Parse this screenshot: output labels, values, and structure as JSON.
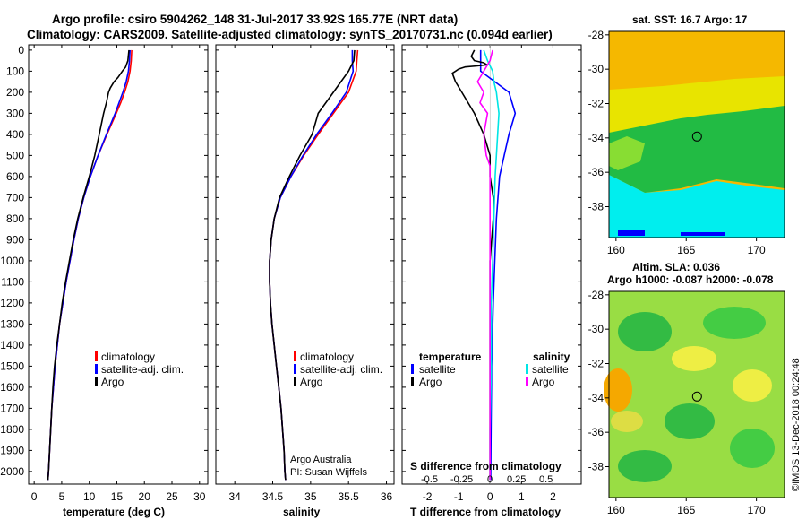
{
  "header": {
    "line1": "Argo profile: csiro 5904262_148 31-Jul-2017 33.92S 165.77E (NRT data)",
    "line2": "Climatology: CARS2009. Satellite-adjusted climatology: synTS_20170731.nc (0.094d earlier)"
  },
  "colors": {
    "climatology": "#ff0000",
    "satellite": "#0000ff",
    "argo": "#000000",
    "sat_salinity": "#00e5e5",
    "argo_salinity": "#ff00ff"
  },
  "panels": {
    "temperature": {
      "xlabel": "temperature (deg C)",
      "xticks": [
        0,
        5,
        10,
        15,
        20,
        25,
        30
      ],
      "xlim": [
        -1,
        31.5
      ]
    },
    "salinity": {
      "xlabel": "salinity",
      "xticks": [
        34,
        34.5,
        35,
        35.5,
        36
      ],
      "xlim": [
        33.75,
        36.1
      ]
    },
    "difference": {
      "xlabel": "T difference from climatology",
      "xticks": [
        -2,
        -1,
        0,
        1,
        2
      ],
      "xlim": [
        -2.8,
        2.9
      ],
      "s_label": "S difference from climatology",
      "s_ticks": [
        "-0.5",
        "-0.25",
        "0",
        "0.25",
        "0.5"
      ]
    }
  },
  "depth_ticks": [
    0,
    100,
    200,
    300,
    400,
    500,
    600,
    700,
    800,
    900,
    1000,
    1100,
    1200,
    1300,
    1400,
    1500,
    1600,
    1700,
    1800,
    1900,
    2000
  ],
  "ylim": [
    -25,
    2060
  ],
  "legend": {
    "climatology": "climatology",
    "satellite_adj": "satellite-adj. clim.",
    "argo": "Argo",
    "temperature_head": "temperature",
    "salinity_head": "salinity",
    "satellite": "satellite"
  },
  "credits": {
    "program": "Argo Australia",
    "pi": "PI: Susan Wijffels",
    "stamp": "©IMOS 13-Dec-2018 00:24:48"
  },
  "sst_map": {
    "title": "sat. SST: 16.7 Argo: 17",
    "lat_ticks": [
      -28,
      -30,
      -32,
      -34,
      -36,
      -38
    ],
    "lon_ticks": [
      160,
      165,
      170
    ],
    "argo_lat": -33.92,
    "argo_lon": 165.77
  },
  "sla_map": {
    "title1": "Altim. SLA: 0.036",
    "title2": "Argo h1000: -0.087 h2000: -0.078",
    "lat_ticks": [
      -28,
      -30,
      -32,
      -34,
      -36,
      -38
    ],
    "lon_ticks": [
      160,
      165,
      170
    ],
    "argo_lat": -33.92,
    "argo_lon": 165.77
  },
  "chart_data": {
    "type": "line",
    "y_axis": "depth (dbar), increasing downward",
    "temperature": {
      "series": [
        {
          "name": "climatology",
          "depth": [
            0,
            50,
            100,
            150,
            200,
            250,
            300,
            400,
            500,
            600,
            700,
            800,
            900,
            1000,
            1100,
            1200,
            1300,
            1400,
            1500,
            1600,
            1700,
            1800,
            1900,
            2000,
            2040
          ],
          "values": [
            17.7,
            17.6,
            17.4,
            17.0,
            16.4,
            15.7,
            14.9,
            13.2,
            11.6,
            10.2,
            9.0,
            8.0,
            7.2,
            6.5,
            5.8,
            5.2,
            4.6,
            4.2,
            3.8,
            3.5,
            3.2,
            3.0,
            2.8,
            2.6,
            2.5
          ]
        },
        {
          "name": "satellite-adj. clim.",
          "depth": [
            0,
            50,
            100,
            150,
            200,
            250,
            300,
            400,
            500,
            600,
            700,
            800,
            900,
            1000,
            1100,
            1200,
            1300,
            1400,
            1500,
            1600,
            1700,
            1800,
            1900,
            2000,
            2040
          ],
          "values": [
            17.4,
            17.3,
            17.1,
            16.7,
            16.1,
            15.4,
            14.7,
            13.1,
            11.6,
            10.2,
            9.0,
            8.0,
            7.2,
            6.5,
            5.8,
            5.2,
            4.6,
            4.2,
            3.8,
            3.5,
            3.2,
            3.0,
            2.8,
            2.6,
            2.5
          ]
        },
        {
          "name": "Argo",
          "depth": [
            0,
            50,
            80,
            100,
            130,
            150,
            180,
            200,
            250,
            300,
            400,
            500,
            600,
            700,
            800,
            900,
            1000,
            1100,
            1200,
            1300,
            1400,
            1500,
            1600,
            1700,
            1800,
            1900,
            2000,
            2040
          ],
          "values": [
            17.2,
            17.0,
            16.6,
            16.0,
            15.2,
            14.5,
            13.8,
            13.5,
            13.1,
            12.6,
            11.8,
            11.0,
            10.0,
            8.9,
            7.9,
            7.1,
            6.4,
            5.7,
            5.1,
            4.6,
            4.1,
            3.7,
            3.4,
            3.2,
            3.0,
            2.8,
            2.6,
            2.5
          ]
        }
      ]
    },
    "salinity": {
      "series": [
        {
          "name": "climatology",
          "depth": [
            0,
            50,
            100,
            200,
            300,
            400,
            500,
            600,
            700,
            800,
            900,
            1000,
            1100,
            1200,
            1300,
            1400,
            1500,
            1600,
            1700,
            1800,
            1900,
            2000,
            2040
          ],
          "values": [
            35.62,
            35.61,
            35.6,
            35.5,
            35.3,
            35.1,
            34.91,
            34.74,
            34.6,
            34.52,
            34.48,
            34.46,
            34.46,
            34.47,
            34.49,
            34.52,
            34.55,
            34.58,
            34.61,
            34.63,
            34.65,
            34.66,
            34.67
          ]
        },
        {
          "name": "satellite-adj. clim.",
          "depth": [
            0,
            50,
            100,
            200,
            300,
            400,
            500,
            600,
            700,
            800,
            900,
            1000,
            1100,
            1200,
            1300,
            1400,
            1500,
            1600,
            1700,
            1800,
            1900,
            2000,
            2040
          ],
          "values": [
            35.55,
            35.55,
            35.56,
            35.47,
            35.28,
            35.08,
            34.9,
            34.74,
            34.6,
            34.52,
            34.48,
            34.46,
            34.46,
            34.47,
            34.49,
            34.52,
            34.55,
            34.58,
            34.61,
            34.63,
            34.65,
            34.66,
            34.67
          ]
        },
        {
          "name": "Argo",
          "depth": [
            0,
            50,
            100,
            150,
            200,
            250,
            300,
            400,
            500,
            600,
            700,
            800,
            900,
            1000,
            1100,
            1200,
            1300,
            1400,
            1500,
            1600,
            1700,
            1800,
            1900,
            2000,
            2040
          ],
          "values": [
            35.58,
            35.57,
            35.5,
            35.4,
            35.3,
            35.2,
            35.1,
            35.02,
            34.86,
            34.72,
            34.59,
            34.52,
            34.48,
            34.46,
            34.46,
            34.47,
            34.49,
            34.52,
            34.55,
            34.58,
            34.61,
            34.63,
            34.65,
            34.66,
            34.67
          ]
        }
      ]
    },
    "difference": {
      "series": [
        {
          "name": "temperature satellite",
          "depth": [
            0,
            100,
            200,
            300,
            400,
            500,
            600,
            800,
            1000,
            1200,
            1500,
            1800,
            2040
          ],
          "values": [
            -0.3,
            -0.3,
            0.6,
            0.8,
            0.6,
            0.45,
            0.3,
            0.2,
            0.15,
            0.1,
            0.05,
            0.03,
            0.02
          ]
        },
        {
          "name": "temperature Argo",
          "depth": [
            0,
            30,
            50,
            60,
            70,
            75,
            80,
            90,
            100,
            110,
            150,
            200,
            250,
            300,
            400,
            500,
            600,
            700,
            800,
            1000,
            1200,
            1500,
            1800,
            2040
          ],
          "values": [
            -0.5,
            -0.6,
            -0.5,
            -0.2,
            -0.1,
            -0.4,
            -0.8,
            -1.0,
            -1.1,
            -1.2,
            -1.1,
            -0.9,
            -0.7,
            -0.5,
            -0.2,
            0.0,
            0.0,
            0.1,
            0.1,
            0.0,
            0.0,
            0.0,
            0.0,
            0.0
          ]
        },
        {
          "name": "salinity satellite",
          "depth": [
            0,
            50,
            100,
            150,
            200,
            300,
            400,
            500,
            600,
            800,
            1000,
            1200,
            1500,
            1800,
            2040
          ],
          "values": [
            -0.05,
            -0.02,
            0.02,
            0.03,
            0.05,
            0.07,
            0.06,
            0.05,
            0.04,
            0.03,
            0.02,
            0.01,
            0.01,
            0.0,
            0.0
          ]
        },
        {
          "name": "salinity Argo",
          "depth": [
            0,
            50,
            100,
            150,
            200,
            250,
            300,
            400,
            500,
            550,
            600,
            700,
            800,
            1000,
            1200,
            1500,
            1800,
            2040
          ],
          "values": [
            0.02,
            0.0,
            -0.05,
            -0.1,
            -0.05,
            -0.08,
            -0.02,
            -0.05,
            -0.03,
            0.0,
            0.0,
            0.0,
            0.0,
            0.0,
            0.0,
            0.0,
            0.0,
            0.0
          ]
        }
      ]
    }
  }
}
